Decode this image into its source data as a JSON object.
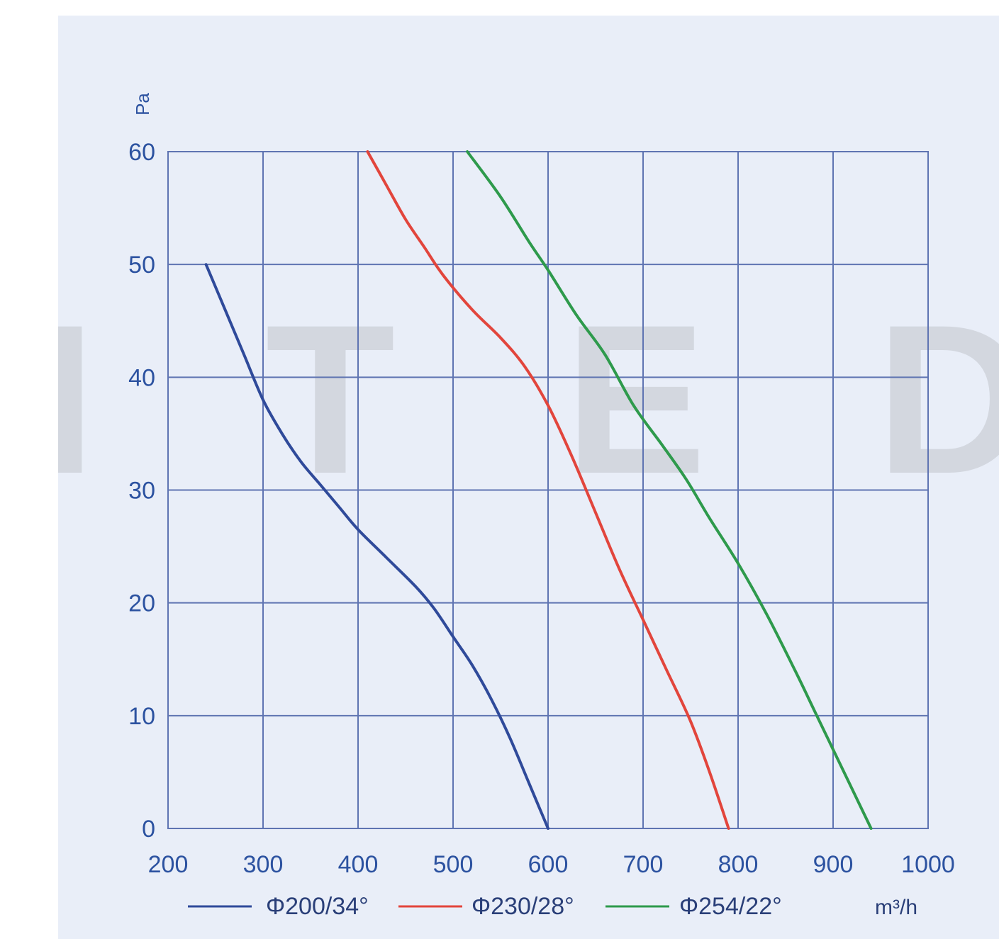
{
  "chart_data": {
    "type": "line",
    "title": "",
    "xlabel": "m³/h",
    "ylabel": "Pa",
    "xlim": [
      200,
      1000
    ],
    "ylim": [
      0,
      60
    ],
    "x_ticks": [
      "200",
      "300",
      "400",
      "500",
      "600",
      "700",
      "800",
      "900",
      "1000"
    ],
    "y_ticks": [
      "0",
      "10",
      "20",
      "30",
      "40",
      "50",
      "60"
    ],
    "grid": true,
    "legend_position": "bottom",
    "series": [
      {
        "name": "Φ200/34°",
        "color": "#2f4a9a",
        "points": [
          [
            240,
            50
          ],
          [
            260,
            46
          ],
          [
            280,
            42
          ],
          [
            300,
            38
          ],
          [
            320,
            35
          ],
          [
            340,
            32.5
          ],
          [
            360,
            30.5
          ],
          [
            380,
            28.5
          ],
          [
            400,
            26.5
          ],
          [
            430,
            24
          ],
          [
            460,
            21.5
          ],
          [
            480,
            19.5
          ],
          [
            500,
            17
          ],
          [
            520,
            14.5
          ],
          [
            540,
            11.5
          ],
          [
            560,
            8
          ],
          [
            580,
            4
          ],
          [
            600,
            0
          ]
        ]
      },
      {
        "name": "Φ230/28°",
        "color": "#e2453c",
        "points": [
          [
            410,
            60
          ],
          [
            430,
            57
          ],
          [
            450,
            54
          ],
          [
            470,
            51.5
          ],
          [
            490,
            49
          ],
          [
            520,
            46
          ],
          [
            550,
            43.5
          ],
          [
            575,
            41
          ],
          [
            600,
            37.5
          ],
          [
            625,
            33
          ],
          [
            650,
            28
          ],
          [
            675,
            23
          ],
          [
            700,
            18.5
          ],
          [
            725,
            14
          ],
          [
            750,
            9.5
          ],
          [
            770,
            5
          ],
          [
            790,
            0
          ]
        ]
      },
      {
        "name": "Φ254/22°",
        "color": "#2e9a4c",
        "points": [
          [
            515,
            60
          ],
          [
            550,
            56
          ],
          [
            580,
            52
          ],
          [
            600,
            49.5
          ],
          [
            630,
            45.5
          ],
          [
            660,
            42
          ],
          [
            690,
            37.5
          ],
          [
            720,
            34
          ],
          [
            745,
            31
          ],
          [
            770,
            27.5
          ],
          [
            800,
            23.5
          ],
          [
            830,
            19
          ],
          [
            860,
            14
          ],
          [
            880,
            10.5
          ],
          [
            900,
            7
          ],
          [
            920,
            3.5
          ],
          [
            940,
            0
          ]
        ]
      }
    ]
  },
  "watermark": "I T E D"
}
